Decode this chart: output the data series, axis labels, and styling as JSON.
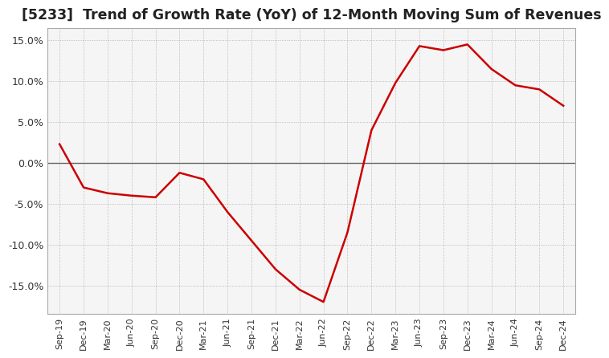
{
  "title": "[5233]  Trend of Growth Rate (YoY) of 12-Month Moving Sum of Revenues",
  "title_fontsize": 12.5,
  "line_color": "#cc0000",
  "background_color": "#ffffff",
  "plot_bg_color": "#f5f5f5",
  "grid_color": "#aaaaaa",
  "ylim": [
    -0.185,
    0.165
  ],
  "yticks": [
    -0.15,
    -0.1,
    -0.05,
    0.0,
    0.05,
    0.1,
    0.15
  ],
  "x_labels": [
    "Sep-19",
    "Dec-19",
    "Mar-20",
    "Jun-20",
    "Sep-20",
    "Dec-20",
    "Mar-21",
    "Jun-21",
    "Sep-21",
    "Dec-21",
    "Mar-22",
    "Jun-22",
    "Sep-22",
    "Dec-22",
    "Mar-23",
    "Jun-23",
    "Sep-23",
    "Dec-23",
    "Mar-24",
    "Jun-24",
    "Sep-24",
    "Dec-24"
  ],
  "y_values": [
    0.023,
    -0.03,
    -0.037,
    -0.04,
    -0.042,
    -0.012,
    -0.02,
    -0.06,
    -0.095,
    -0.13,
    -0.155,
    -0.17,
    -0.085,
    0.04,
    0.098,
    0.143,
    0.138,
    0.145,
    0.115,
    0.095,
    0.09,
    0.07
  ]
}
